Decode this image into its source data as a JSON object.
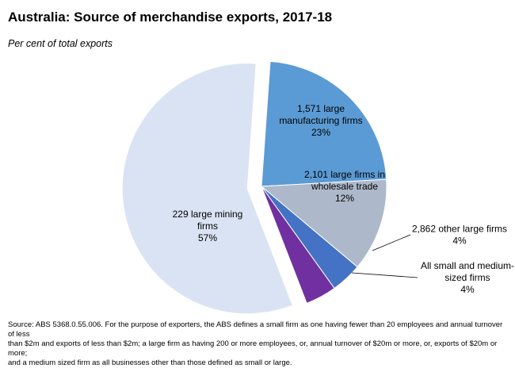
{
  "header": {
    "title": "Australia: Source of merchandise exports, 2017-18",
    "subtitle": "Per cent of total exports"
  },
  "chart_data": {
    "type": "pie",
    "title": "Australia: Source of merchandise exports, 2017-18",
    "subtitle": "Per cent of total exports",
    "unit": "%",
    "slices": [
      {
        "name": "1,571 large manufacturing firms",
        "lines": [
          "1,571 large",
          "manufacturing firms"
        ],
        "value": 23,
        "value_label": "23%",
        "color": "#5b9bd5",
        "label_color": "#000000"
      },
      {
        "name": "2,101 large firms in wholesale trade",
        "lines": [
          "2,101 large firms in",
          "wholesale trade"
        ],
        "value": 12,
        "value_label": "12%",
        "color": "#adb9ca",
        "label_color": "#000000"
      },
      {
        "name": "2,862 other large firms",
        "lines": [
          "2,862 other large firms"
        ],
        "value": 4,
        "value_label": "4%",
        "color": "#4472c4",
        "label_color": "#000000"
      },
      {
        "name": "All small and medium-sized firms",
        "lines": [
          "All small and medium-",
          "sized firms"
        ],
        "value": 4,
        "value_label": "4%",
        "color": "#7030a0",
        "label_color": "#000000"
      },
      {
        "name": "229 large mining firms",
        "lines": [
          "229 large mining",
          "firms"
        ],
        "value": 57,
        "value_label": "57%",
        "color": "#dae3f3",
        "label_color": "#000000",
        "exploded": true
      }
    ]
  },
  "footer": {
    "source_lines": [
      "Source: ABS 5368.0.55.006.  For the purpose of exporters, the ABS defines a small firm as one having fewer than 20 employees and annual turnover of less",
      "than $2m and exports of less than $2m; a large firm as having 200 or more employees, or, annual turnover of $20m or more, or, exports of $20m or more;",
      "and a medium sized firm as all businesses other than those defined as small or large."
    ]
  }
}
